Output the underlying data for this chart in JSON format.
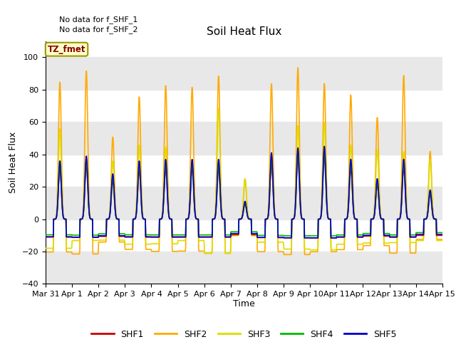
{
  "title": "Soil Heat Flux",
  "ylabel": "Soil Heat Flux",
  "xlabel": "Time",
  "annotations": [
    "No data for f_SHF_1",
    "No data for f_SHF_2"
  ],
  "legend_label": "TZ_fmet",
  "ylim": [
    -40,
    110
  ],
  "yticks": [
    -40,
    -20,
    0,
    20,
    40,
    60,
    80,
    100
  ],
  "series_colors": {
    "SHF1": "#cc0000",
    "SHF2": "#ffaa00",
    "SHF3": "#dddd00",
    "SHF4": "#00bb00",
    "SHF5": "#0000cc"
  },
  "fig_bg_color": "#ffffff",
  "plot_bg_color": "#ffffff",
  "band_color": "#e8e8e8",
  "legend_box_color": "#ffffcc",
  "legend_box_border": "#999900",
  "tick_label_size": 8,
  "axis_label_size": 9,
  "title_size": 11
}
